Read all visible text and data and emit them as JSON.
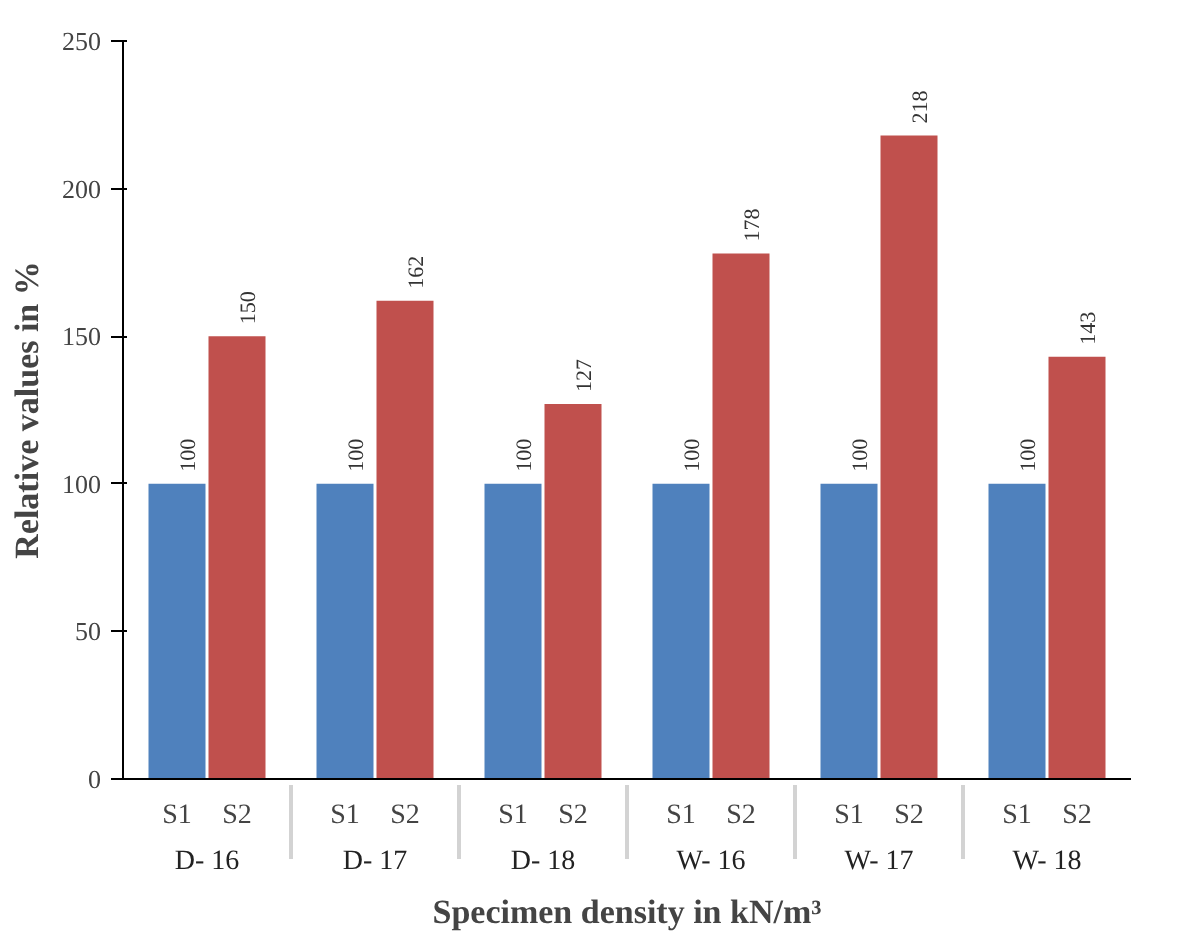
{
  "chart_data": {
    "type": "bar",
    "xlabel": "Specimen density in kN/m³",
    "ylabel": "Relative values in %",
    "categories": [
      "D- 16",
      "D- 17",
      "D- 18",
      "W- 16",
      "W- 17",
      "W- 18"
    ],
    "series": [
      {
        "name": "S1",
        "color": "#4f81bd",
        "values": [
          100,
          100,
          100,
          100,
          100,
          100
        ]
      },
      {
        "name": "S2",
        "color": "#c0504d",
        "values": [
          150,
          162,
          127,
          178,
          218,
          143
        ]
      }
    ],
    "ylim": [
      0,
      250
    ],
    "yticks": [
      0,
      50,
      100,
      150,
      200,
      250
    ],
    "data_labels": true,
    "grid": false
  }
}
